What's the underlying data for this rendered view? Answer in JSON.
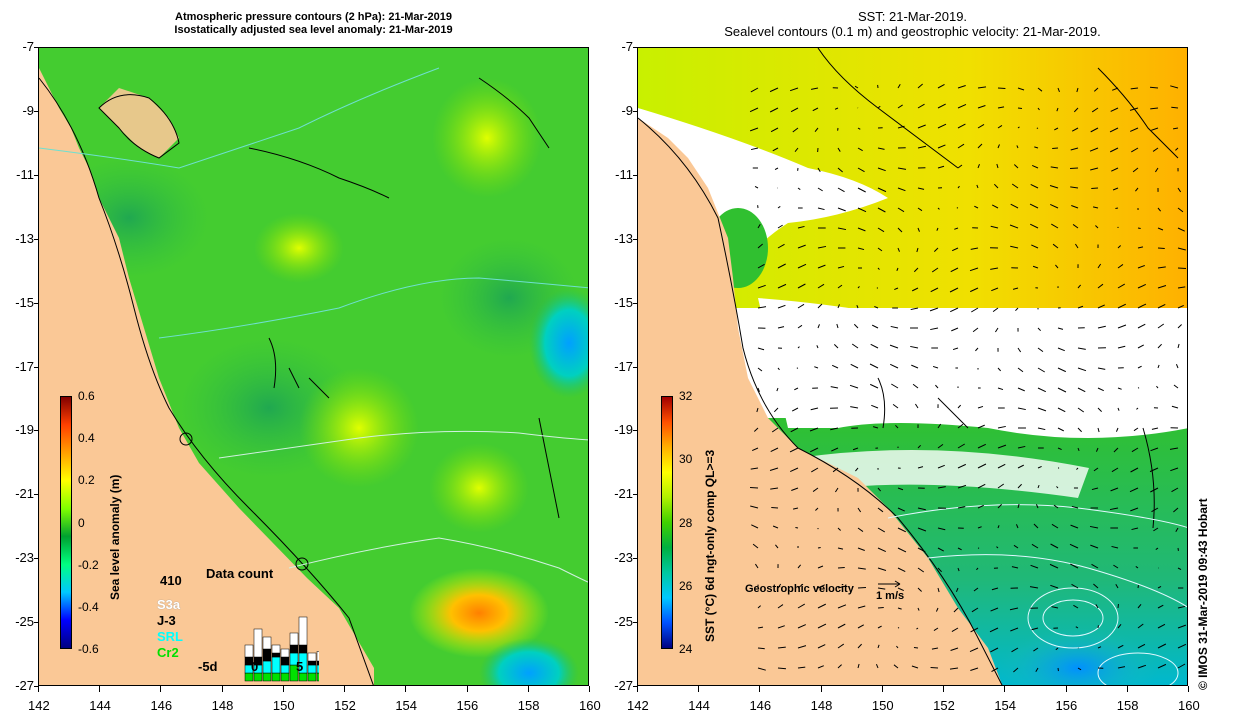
{
  "left_panel": {
    "title_line1": "Atmospheric pressure contours (2 hPa): 21-Mar-2019",
    "title_line2": "Isostatically adjusted sea level anomaly: 21-Mar-2019",
    "colorbar": {
      "label": "Sea level anomaly (m)",
      "ticks": [
        "0.6",
        "0.4",
        "0.2",
        "0",
        "-0.2",
        "-0.4",
        "-0.6"
      ],
      "colors": [
        "#000080",
        "#0000ff",
        "#00c8ff",
        "#00ff80",
        "#00a030",
        "#80ff00",
        "#ffff00",
        "#ffa000",
        "#ff4000",
        "#800000"
      ]
    },
    "data_count": {
      "title": "Data count",
      "max_label": "410",
      "x_ticks": [
        "-5d",
        "0",
        "5"
      ],
      "legend": [
        {
          "label": "S3a",
          "color": "#ffffff"
        },
        {
          "label": "J-3",
          "color": "#000000"
        },
        {
          "label": "SRL",
          "color": "#00ffff"
        },
        {
          "label": "Cr2",
          "color": "#00e000"
        }
      ]
    }
  },
  "right_panel": {
    "title_line1": "SST: 21-Mar-2019.",
    "title_line2": "Sealevel contours (0.1 m) and geostrophic velocity: 21-Mar-2019.",
    "colorbar": {
      "label": "SST (°C) 6d ngt-only comp QL>=3",
      "ticks": [
        "32",
        "30",
        "28",
        "26",
        "24"
      ],
      "colors": [
        "#000080",
        "#0050ff",
        "#00c8ff",
        "#00c8a0",
        "#00b040",
        "#40d000",
        "#b0f000",
        "#ffff00",
        "#ffb000",
        "#ff5000",
        "#a00000"
      ]
    },
    "velocity_label": "Geostrophic velocity",
    "velocity_scale": "1 m/s"
  },
  "axes": {
    "x_ticks": [
      "142",
      "144",
      "146",
      "148",
      "150",
      "152",
      "154",
      "156",
      "158",
      "160"
    ],
    "y_ticks": [
      "-7",
      "-9",
      "-11",
      "-13",
      "-15",
      "-17",
      "-19",
      "-21",
      "-23",
      "-25",
      "-27"
    ]
  },
  "credit": "© IMOS 31-Mar-2019 09:43 Hobart",
  "colors": {
    "land": "#fac896",
    "sea_green": "#3cc83c",
    "no_data": "#ffffff"
  }
}
